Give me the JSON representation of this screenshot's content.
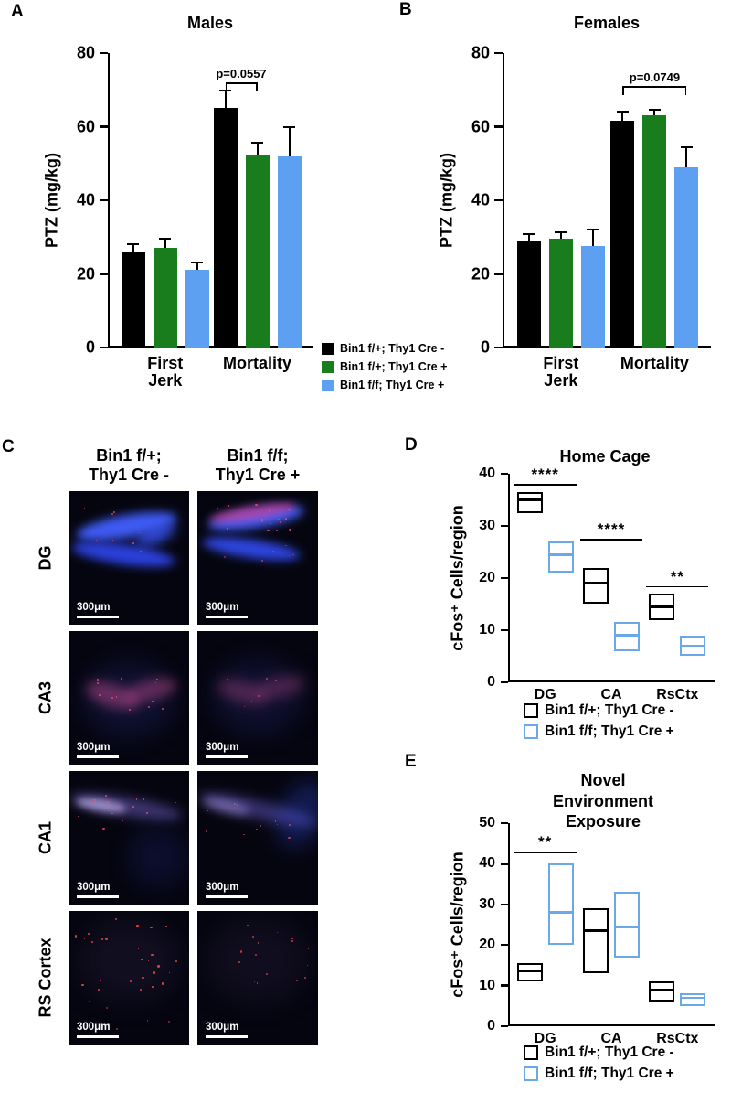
{
  "colors": {
    "background": "#ffffff",
    "bar_black": "#000000",
    "bar_green": "#1a7d1d",
    "bar_blue": "#5d9ff0",
    "box_black": "#000000",
    "box_blue": "#6aa8e8"
  },
  "panels": {
    "A": {
      "label": "A"
    },
    "B": {
      "label": "B"
    },
    "C": {
      "label": "C"
    },
    "D": {
      "label": "D"
    },
    "E": {
      "label": "E"
    }
  },
  "panelC": {
    "col_headers": [
      "Bin1 f/+;\nThy1 Cre -",
      "Bin1 f/f;\nThy1 Cre +"
    ],
    "row_labels": [
      "DG",
      "CA3",
      "CA1",
      "RS Cortex"
    ],
    "scale_label": "300μm"
  },
  "legends": {
    "bars": [
      {
        "color": "#000000",
        "label": "Bin1 f/+; Thy1 Cre -"
      },
      {
        "color": "#1a7d1d",
        "label": "Bin1 f/+; Thy1 Cre +"
      },
      {
        "color": "#5d9ff0",
        "label": "Bin1 f/f; Thy1 Cre +"
      }
    ],
    "boxes": [
      {
        "color": "#000000",
        "label": "Bin1 f/+; Thy1 Cre -"
      },
      {
        "color": "#6aa8e8",
        "label": "Bin1 f/f; Thy1 Cre +"
      }
    ]
  },
  "chart_data": [
    {
      "id": "A",
      "type": "bar",
      "title": "Males",
      "ylabel": "PTZ (mg/kg)",
      "ylim": [
        0,
        80
      ],
      "yticks": [
        0,
        20,
        40,
        60,
        80
      ],
      "categories": [
        "First Jerk",
        "Mortality"
      ],
      "series": [
        {
          "name": "Bin1 f/+; Thy1 Cre -",
          "color": "#000000",
          "values": [
            26,
            65
          ],
          "errors": [
            2,
            4.8
          ]
        },
        {
          "name": "Bin1 f/+; Thy1 Cre +",
          "color": "#1a7d1d",
          "values": [
            27,
            52.5
          ],
          "errors": [
            2.5,
            3.2
          ]
        },
        {
          "name": "Bin1 f/f; Thy1 Cre +",
          "color": "#5d9ff0",
          "values": [
            21,
            52
          ],
          "errors": [
            2,
            7.8
          ]
        }
      ],
      "annotation": {
        "text": "p=0.0557",
        "category": 1,
        "from_series": 0,
        "to_series": 1,
        "y": 72
      }
    },
    {
      "id": "B",
      "type": "bar",
      "title": "Females",
      "ylabel": "PTZ (mg/kg)",
      "ylim": [
        0,
        80
      ],
      "yticks": [
        0,
        20,
        40,
        60,
        80
      ],
      "categories": [
        "First Jerk",
        "Mortality"
      ],
      "series": [
        {
          "name": "Bin1 f/+; Thy1 Cre -",
          "color": "#000000",
          "values": [
            29,
            61.5
          ],
          "errors": [
            1.8,
            2.5
          ]
        },
        {
          "name": "Bin1 f/+; Thy1 Cre +",
          "color": "#1a7d1d",
          "values": [
            29.5,
            63
          ],
          "errors": [
            1.7,
            1.5
          ]
        },
        {
          "name": "Bin1 f/f; Thy1 Cre +",
          "color": "#5d9ff0",
          "values": [
            27.5,
            49
          ],
          "errors": [
            4.5,
            5.5
          ]
        }
      ],
      "annotation": {
        "text": "p=0.0749",
        "category": 1,
        "from_series": 0,
        "to_series": 2,
        "y": 71
      }
    },
    {
      "id": "D",
      "type": "box",
      "title": "Home Cage",
      "ylabel": "cFos⁺ Cells/region",
      "ylim": [
        0,
        40
      ],
      "yticks": [
        0,
        10,
        20,
        30,
        40
      ],
      "categories": [
        "DG",
        "CA",
        "RsCtx"
      ],
      "series": [
        {
          "name": "Bin1 f/+; Thy1 Cre -",
          "color": "#000000",
          "boxes": [
            {
              "low": 32.5,
              "mid": 35,
              "high": 36.5
            },
            {
              "low": 15,
              "mid": 19,
              "high": 22
            },
            {
              "low": 12,
              "mid": 14.5,
              "high": 17
            }
          ]
        },
        {
          "name": "Bin1 f/f; Thy1 Cre +",
          "color": "#6aa8e8",
          "boxes": [
            {
              "low": 21,
              "mid": 24.5,
              "high": 27
            },
            {
              "low": 6,
              "mid": 9,
              "high": 11.5
            },
            {
              "low": 5,
              "mid": 7,
              "high": 9
            }
          ]
        }
      ],
      "annotations": [
        {
          "text": "****",
          "category": 0,
          "y": 38
        },
        {
          "text": "****",
          "category": 1,
          "y": 27.5
        },
        {
          "text": "**",
          "category": 2,
          "y": 18.5
        }
      ]
    },
    {
      "id": "E",
      "type": "box",
      "title": "Novel Environment\nExposure",
      "ylabel": "cFos⁺ Cells/region",
      "ylim": [
        0,
        50
      ],
      "yticks": [
        0,
        10,
        20,
        30,
        40,
        50
      ],
      "categories": [
        "DG",
        "CA",
        "RsCtx"
      ],
      "series": [
        {
          "name": "Bin1 f/+; Thy1 Cre -",
          "color": "#000000",
          "boxes": [
            {
              "low": 11,
              "mid": 13.5,
              "high": 15.5
            },
            {
              "low": 13,
              "mid": 23.5,
              "high": 29
            },
            {
              "low": 6,
              "mid": 9,
              "high": 11
            }
          ]
        },
        {
          "name": "Bin1 f/f; Thy1 Cre +",
          "color": "#6aa8e8",
          "boxes": [
            {
              "low": 20,
              "mid": 28,
              "high": 40
            },
            {
              "low": 17,
              "mid": 24.5,
              "high": 33
            },
            {
              "low": 5,
              "mid": 7,
              "high": 8
            }
          ]
        }
      ],
      "annotations": [
        {
          "text": "**",
          "category": 0,
          "y": 43
        }
      ]
    }
  ]
}
